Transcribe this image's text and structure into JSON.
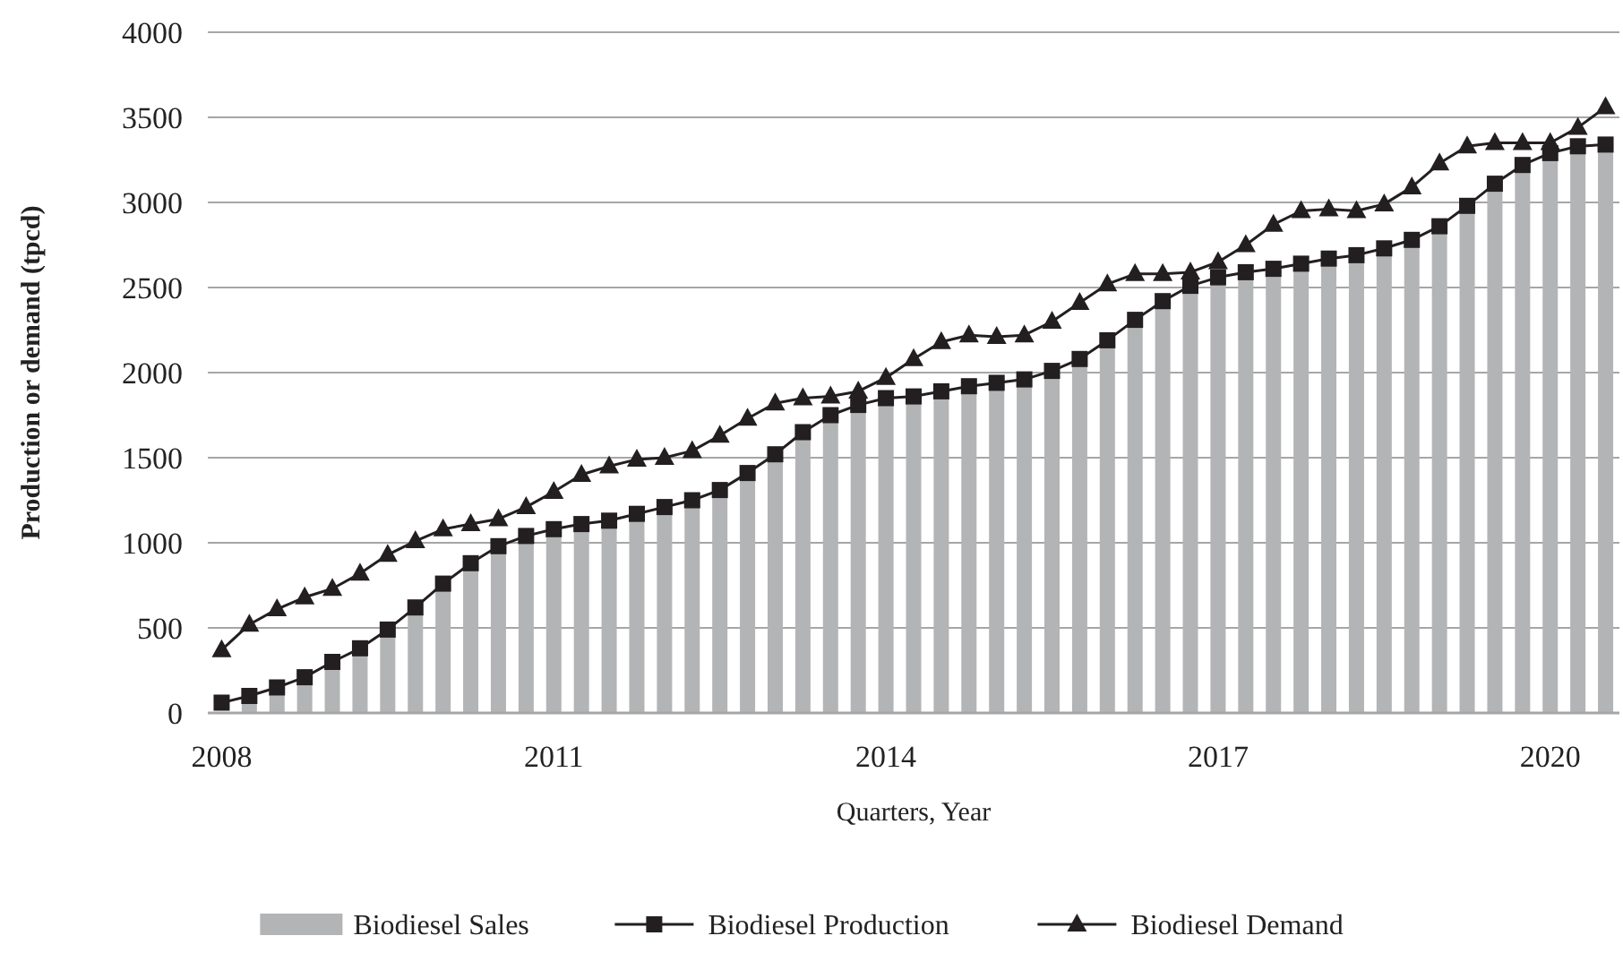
{
  "chart_data": {
    "type": "bar",
    "xlabel": "Quarters, Year",
    "ylabel": "Production or demand (tpcd)",
    "categories": [
      "2008",
      null,
      null,
      null,
      null,
      null,
      null,
      null,
      null,
      null,
      null,
      null,
      "2011",
      null,
      null,
      null,
      null,
      null,
      null,
      null,
      null,
      null,
      null,
      null,
      "2014",
      null,
      null,
      null,
      null,
      null,
      null,
      null,
      null,
      null,
      null,
      null,
      "2017",
      null,
      null,
      null,
      null,
      null,
      null,
      null,
      null,
      null,
      null,
      null,
      "2020",
      null,
      null
    ],
    "ylim": [
      0,
      4000
    ],
    "yticks": [
      0,
      500,
      1000,
      1500,
      2000,
      2500,
      3000,
      3500,
      4000
    ],
    "grid": "y",
    "legend": "bottom",
    "series": [
      {
        "name": "Biodiesel Sales",
        "color": "#b3b4b6",
        "values": [
          null,
          60,
          110,
          170,
          260,
          340,
          450,
          580,
          720,
          840,
          940,
          1000,
          1040,
          1070,
          1090,
          1130,
          1170,
          1210,
          1270,
          1370,
          1480,
          1610,
          1710,
          1770,
          1810,
          1820,
          1850,
          1880,
          1900,
          1920,
          1970,
          2040,
          2150,
          2270,
          2380,
          2470,
          2520,
          2550,
          2570,
          2600,
          2630,
          2650,
          2690,
          2740,
          2820,
          2940,
          3070,
          3180,
          3250,
          3290,
          3300
        ]
      },
      {
        "name": "Biodiesel Production",
        "type": "line",
        "marker": "square",
        "color": "#231f20",
        "values": [
          60,
          100,
          150,
          210,
          300,
          380,
          490,
          620,
          760,
          880,
          980,
          1040,
          1080,
          1110,
          1130,
          1170,
          1210,
          1250,
          1310,
          1410,
          1520,
          1650,
          1750,
          1810,
          1850,
          1860,
          1890,
          1920,
          1940,
          1960,
          2010,
          2080,
          2190,
          2310,
          2420,
          2510,
          2560,
          2590,
          2610,
          2640,
          2670,
          2690,
          2730,
          2780,
          2860,
          2980,
          3110,
          3220,
          3290,
          3330,
          3340
        ]
      },
      {
        "name": "Biodiesel Demand",
        "type": "line",
        "marker": "triangle",
        "color": "#231f20",
        "values": [
          370,
          520,
          610,
          680,
          730,
          820,
          930,
          1010,
          1080,
          1110,
          1140,
          1210,
          1300,
          1400,
          1450,
          1490,
          1500,
          1540,
          1630,
          1730,
          1820,
          1850,
          1860,
          1890,
          1970,
          2080,
          2180,
          2220,
          2210,
          2220,
          2300,
          2410,
          2520,
          2580,
          2580,
          2590,
          2650,
          2750,
          2870,
          2950,
          2960,
          2950,
          2990,
          3090,
          3230,
          3330,
          3350,
          3350,
          3350,
          3440,
          3560
        ]
      }
    ]
  }
}
